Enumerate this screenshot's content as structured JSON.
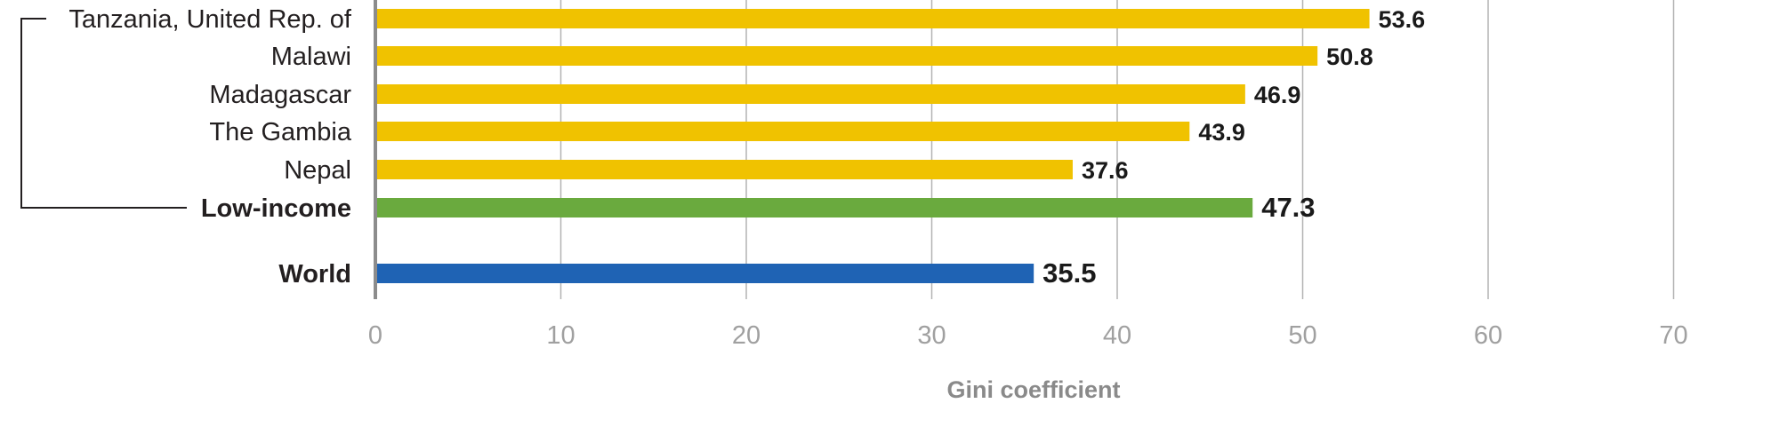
{
  "chart_data": {
    "type": "bar",
    "orientation": "horizontal",
    "xlabel": "Gini coefficient",
    "xlim": [
      0,
      70
    ],
    "xticks": [
      0,
      10,
      20,
      30,
      40,
      50,
      60,
      70
    ],
    "grid": true,
    "categories": [
      {
        "label": "Tanzania, United Rep. of",
        "value": 53.6,
        "color": "#f0c200",
        "bold": false
      },
      {
        "label": "Malawi",
        "value": 50.8,
        "color": "#f0c200",
        "bold": false
      },
      {
        "label": "Madagascar",
        "value": 46.9,
        "color": "#f0c200",
        "bold": false
      },
      {
        "label": "The Gambia",
        "value": 43.9,
        "color": "#f0c200",
        "bold": false
      },
      {
        "label": "Nepal",
        "value": 37.6,
        "color": "#f0c200",
        "bold": false
      },
      {
        "label": "Low-income",
        "value": 47.3,
        "color": "#6aaa3e",
        "bold": true
      },
      {
        "label": "World",
        "value": 35.5,
        "color": "#1f63b4",
        "bold": true
      }
    ],
    "value_labels": [
      "53.6",
      "50.8",
      "46.9",
      "43.9",
      "37.6",
      "47.3",
      "35.5"
    ],
    "group_bracket": {
      "from": "Tanzania, United Rep. of",
      "to": "Low-income"
    }
  }
}
